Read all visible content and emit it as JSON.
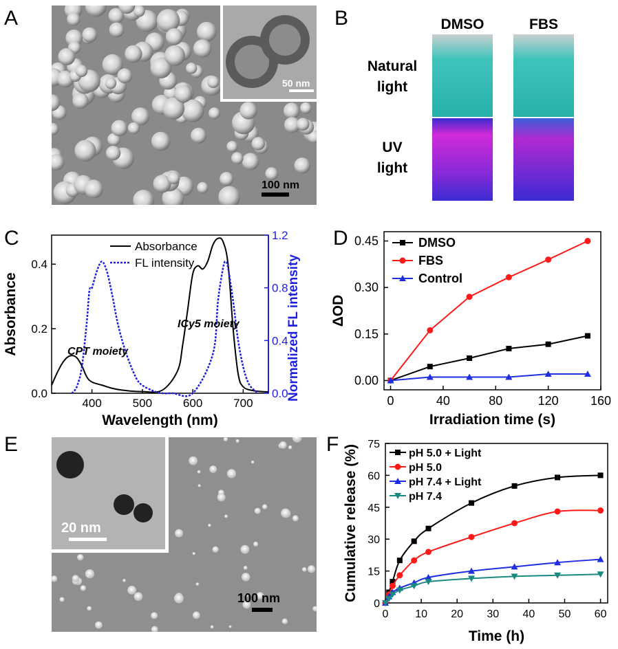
{
  "panels": {
    "A": {
      "letter": "A",
      "scale_label": "100 nm",
      "inset_scale_label": "50 nm"
    },
    "B": {
      "letter": "B",
      "columns": [
        "DMSO",
        "FBS"
      ],
      "rows": [
        {
          "line1": "Natural",
          "line2": "light"
        },
        {
          "line1": "UV",
          "line2": "light"
        }
      ],
      "colors": {
        "natural": "#2fb8b0",
        "uv_top": "#c026d3",
        "uv_bottom": "#4b2bd6"
      }
    },
    "E": {
      "letter": "E",
      "scale_label": "100 nm",
      "inset_scale_label": "20 nm"
    }
  },
  "chart_data": [
    {
      "panel": "C",
      "type": "line",
      "xlabel": "Wavelength (nm)",
      "ylabel": "Absorbance",
      "ylabel_right": "Normalized FL intensity",
      "xlim": [
        320,
        750
      ],
      "ylim": [
        0,
        0.49
      ],
      "ylim_right": [
        0,
        1.2
      ],
      "x_ticks": [
        "400",
        "500",
        "600",
        "700"
      ],
      "y_ticks": [
        "0.0",
        "0.2",
        "0.4"
      ],
      "y_ticks_right": [
        "0.0",
        "0.4",
        "0.8",
        "1.2"
      ],
      "legend": [
        "Absorbance",
        "FL intensity"
      ],
      "annotations": [
        "CPT moiety",
        "ICy5 moiety"
      ],
      "colors": {
        "absorbance": "#000000",
        "fl": "#1f1fe0"
      },
      "series": [
        {
          "name": "Absorbance",
          "axis": "left",
          "x": [
            320,
            330,
            340,
            350,
            360,
            370,
            380,
            390,
            400,
            420,
            450,
            500,
            540,
            570,
            580,
            590,
            600,
            610,
            620,
            630,
            640,
            650,
            660,
            670,
            680,
            690,
            700,
            720,
            750
          ],
          "y": [
            0.025,
            0.06,
            0.09,
            0.11,
            0.117,
            0.11,
            0.085,
            0.05,
            0.035,
            0.025,
            0.012,
            0.005,
            0.01,
            0.07,
            0.15,
            0.26,
            0.37,
            0.395,
            0.385,
            0.41,
            0.46,
            0.48,
            0.47,
            0.4,
            0.2,
            0.06,
            0.02,
            0.008,
            0.004
          ]
        },
        {
          "name": "FL intensity",
          "axis": "right",
          "x": [
            360,
            370,
            380,
            390,
            395,
            400,
            410,
            420,
            430,
            440,
            450,
            460,
            470,
            480,
            490,
            500,
            520,
            540,
            560,
            600,
            640,
            650,
            660,
            665,
            670,
            680,
            690,
            700,
            710,
            720,
            730
          ],
          "y": [
            0.0,
            0.05,
            0.2,
            0.55,
            0.78,
            0.8,
            0.93,
            1.0,
            0.92,
            0.75,
            0.55,
            0.4,
            0.28,
            0.18,
            0.1,
            0.06,
            0.02,
            0.0,
            0.0,
            0.0,
            0.3,
            0.7,
            0.95,
            1.0,
            0.95,
            0.7,
            0.4,
            0.2,
            0.08,
            0.03,
            0.0
          ]
        }
      ]
    },
    {
      "panel": "D",
      "type": "line",
      "xlabel": "Irradiation time (s)",
      "ylabel": "ΔOD",
      "xlim": [
        -5,
        160
      ],
      "ylim": [
        -0.03,
        0.48
      ],
      "x_ticks": [
        "0",
        "40",
        "80",
        "120",
        "160"
      ],
      "y_ticks": [
        "0.00",
        "0.15",
        "0.30",
        "0.45"
      ],
      "series": [
        {
          "name": "DMSO",
          "color": "#000000",
          "marker": "square",
          "x": [
            0,
            30,
            60,
            90,
            120,
            150
          ],
          "y": [
            0.0,
            0.045,
            0.072,
            0.103,
            0.117,
            0.144
          ]
        },
        {
          "name": "FBS",
          "color": "#ff1a1a",
          "marker": "circle",
          "x": [
            0,
            30,
            60,
            90,
            120,
            150
          ],
          "y": [
            0.0,
            0.162,
            0.27,
            0.333,
            0.39,
            0.45
          ]
        },
        {
          "name": "Control",
          "color": "#1f2fe0",
          "marker": "triangle",
          "x": [
            0,
            30,
            60,
            90,
            120,
            150
          ],
          "y": [
            0.0,
            0.011,
            0.011,
            0.011,
            0.021,
            0.021
          ]
        }
      ]
    },
    {
      "panel": "F",
      "type": "line",
      "xlabel": "Time (h)",
      "ylabel": "Cumulative release (%)",
      "xlim": [
        0,
        62
      ],
      "ylim": [
        0,
        75
      ],
      "x_ticks": [
        "0",
        "10",
        "20",
        "30",
        "40",
        "50",
        "60"
      ],
      "y_ticks": [
        "0",
        "15",
        "30",
        "45",
        "60",
        "75"
      ],
      "series": [
        {
          "name": "pH 5.0 + Light",
          "color": "#000000",
          "marker": "square",
          "x": [
            0,
            1,
            2,
            4,
            8,
            12,
            24,
            36,
            48,
            60
          ],
          "y": [
            0,
            5,
            10,
            20,
            29,
            35,
            47,
            55,
            59,
            60
          ]
        },
        {
          "name": "pH 5.0",
          "color": "#ff1a1a",
          "marker": "circle",
          "x": [
            0,
            1,
            2,
            4,
            8,
            12,
            24,
            36,
            48,
            60
          ],
          "y": [
            0,
            4,
            8,
            13,
            20,
            24,
            31,
            37.5,
            43,
            43.5
          ]
        },
        {
          "name": "pH 7.4 + Light",
          "color": "#1f2fe0",
          "marker": "triangle",
          "x": [
            0,
            1,
            2,
            4,
            8,
            12,
            24,
            36,
            48,
            60
          ],
          "y": [
            0,
            3,
            5,
            7,
            9.5,
            12,
            15,
            17,
            19,
            20.5
          ]
        },
        {
          "name": "pH 7.4",
          "color": "#1a8a80",
          "marker": "triangle-down",
          "x": [
            0,
            1,
            2,
            4,
            8,
            12,
            24,
            36,
            48,
            60
          ],
          "y": [
            0,
            2,
            4,
            6,
            8,
            10,
            11.5,
            12.5,
            13,
            13.5
          ]
        }
      ]
    }
  ]
}
